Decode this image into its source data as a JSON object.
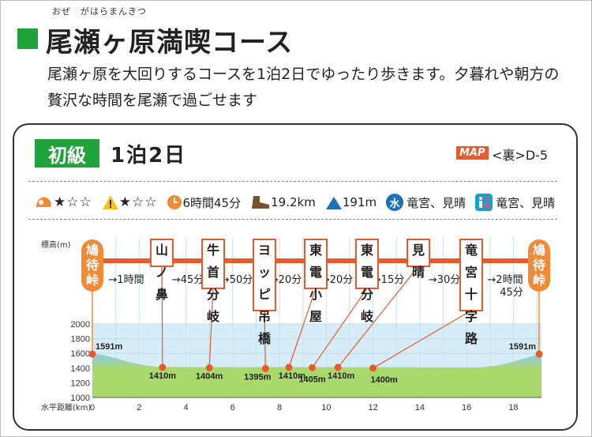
{
  "header": {
    "title": "尾瀬ヶ原満喫コース",
    "ruby": "おぜ　がはらまんきつ",
    "description": "尾瀬ヶ原を大回りするコースを1泊2日でゆったり歩きます。夕暮れや朝方の贅沢な時間を尾瀬で過ごせます",
    "title_color": "#1fa33a"
  },
  "card": {
    "level": "初級",
    "duration": "1泊2日",
    "map_badge": "MAP",
    "map_ref": "<裏>D-5"
  },
  "info": {
    "stamina_stars": "★☆☆",
    "difficulty_stars": "★☆☆",
    "time": "6時間45分",
    "distance": "19.2km",
    "elevation": "191m",
    "water_icon_label": "水",
    "water": "竜宮、見晴",
    "toilet": "竜宮、見晴",
    "icons": [
      "stamina-icon",
      "warning-icon",
      "clock-icon",
      "boot-icon",
      "mountain-icon",
      "water-icon",
      "toilet-icon"
    ]
  },
  "profile": {
    "ylabel": "標高(m)",
    "xlabel": "水平距離(km)",
    "ylim": [
      1000,
      2000
    ],
    "yticks": [
      "1000",
      "1200",
      "1400",
      "1600",
      "1800",
      "2000"
    ],
    "xlim": [
      0,
      19.2
    ],
    "xticks": [
      "0",
      "2",
      "4",
      "6",
      "8",
      "10",
      "12",
      "14",
      "16",
      "18"
    ]
  },
  "chart_data": {
    "type": "area",
    "title": "",
    "xlabel": "水平距離(km)",
    "ylabel": "標高(m)",
    "ylim": [
      1000,
      2000
    ],
    "xlim": [
      0,
      19.2
    ],
    "points": [
      {
        "name": "鳩待峠",
        "x": 0,
        "elevation": 1591,
        "label": "1591m"
      },
      {
        "name": "山ノ鼻",
        "x": 3.0,
        "elevation": 1410,
        "label": "1410m"
      },
      {
        "name": "牛首分岐",
        "x": 5.0,
        "elevation": 1404,
        "label": "1404m"
      },
      {
        "name": "ヨッピ吊橋",
        "x": 7.4,
        "elevation": 1395,
        "label": "1395m"
      },
      {
        "name": "東電小屋",
        "x": 8.4,
        "elevation": 1410,
        "label": "1410m"
      },
      {
        "name": "東電分岐",
        "x": 9.4,
        "elevation": 1405,
        "label": "1405m"
      },
      {
        "name": "見晴",
        "x": 10.5,
        "elevation": 1410,
        "label": "1410m"
      },
      {
        "name": "竜宮十字路",
        "x": 12.0,
        "elevation": 1400,
        "label": "1400m"
      },
      {
        "name": "鳩待峠",
        "x": 19.1,
        "elevation": 1591,
        "label": "1591m"
      }
    ],
    "segments": [
      "1時間",
      "45分",
      "50分",
      "20分",
      "20分",
      "15分",
      "30分",
      "2時間\n45分"
    ]
  },
  "colors": {
    "route": "#e8592c",
    "terminal": "#f08a35",
    "sky": "#d6ecf6",
    "land_top": "#8fc9ea",
    "land_bottom": "#a9d86b"
  }
}
